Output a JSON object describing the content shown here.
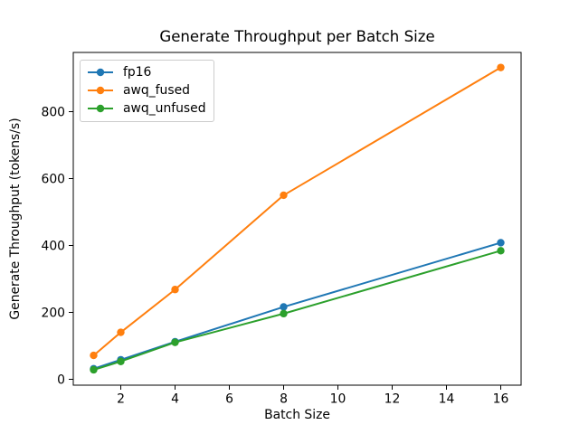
{
  "window": {
    "background": "#ffffff"
  },
  "chart_data": {
    "type": "line",
    "title": "Generate Throughput per Batch Size",
    "xlabel": "Batch Size",
    "ylabel": "Generate Throughput (tokens/s)",
    "x": [
      1,
      2,
      4,
      8,
      16
    ],
    "series": [
      {
        "name": "fp16",
        "color": "#1f77b4",
        "values": [
          31,
          58,
          112,
          216,
          408
        ]
      },
      {
        "name": "awq_fused",
        "color": "#ff7f0e",
        "values": [
          71,
          140,
          268,
          550,
          932
        ]
      },
      {
        "name": "awq_unfused",
        "color": "#2ca02c",
        "values": [
          28,
          53,
          110,
          196,
          384
        ]
      }
    ],
    "xlim": [
      0.25,
      16.75
    ],
    "ylim": [
      -18,
      977
    ],
    "xticks": [
      2,
      4,
      6,
      8,
      10,
      12,
      14,
      16
    ],
    "yticks": [
      0,
      200,
      400,
      600,
      800
    ],
    "grid": false,
    "marker": "o",
    "legend": {
      "position": "upper-left",
      "border_color": "#cccccc",
      "background": "#ffffff"
    },
    "spine_color": "#000000",
    "text_color": "#000000"
  }
}
